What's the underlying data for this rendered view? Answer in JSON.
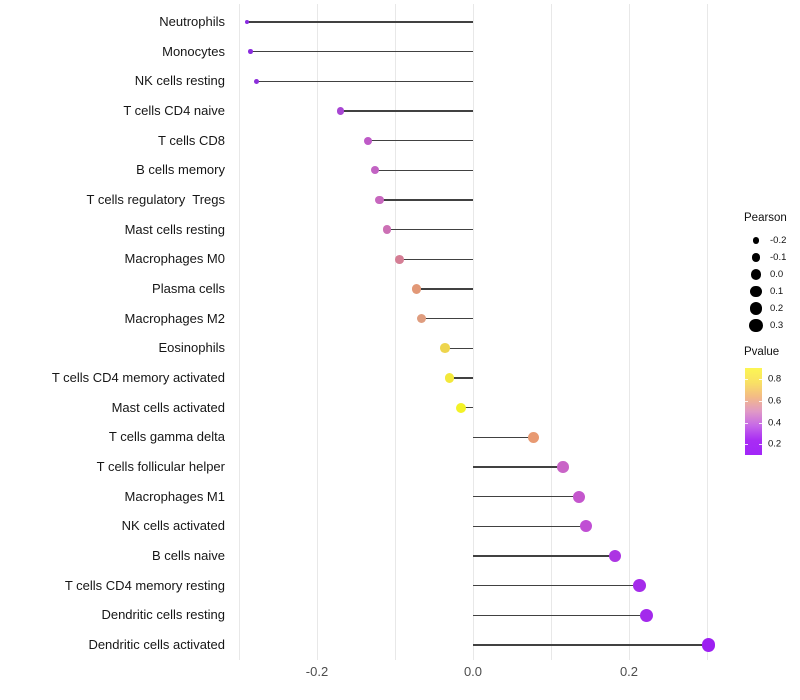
{
  "chart_data": {
    "type": "lollipop",
    "orientation": "horizontal",
    "title": "",
    "xlabel": "",
    "ylabel": "",
    "grid": "vertical-only",
    "xlim": [
      -0.31,
      0.31
    ],
    "grid_x_values": [
      -0.3,
      -0.2,
      -0.1,
      0.0,
      0.1,
      0.2,
      0.3
    ],
    "x_ticks": [
      "-0.2",
      "0.0",
      "0.2"
    ],
    "x_tick_values": [
      -0.2,
      0.0,
      0.2
    ],
    "baseline_value": 0.0,
    "points": [
      {
        "label": "Neutrophils",
        "pearson": -0.29,
        "color": "#8a2be0"
      },
      {
        "label": "Monocytes",
        "pearson": -0.285,
        "color": "#8a2cde"
      },
      {
        "label": "NK cells resting",
        "pearson": -0.278,
        "color": "#8d30db"
      },
      {
        "label": "T cells CD4 naive",
        "pearson": -0.17,
        "color": "#a846d3"
      },
      {
        "label": "T cells CD8",
        "pearson": -0.135,
        "color": "#be5ac7"
      },
      {
        "label": "B cells memory",
        "pearson": -0.126,
        "color": "#c263c3"
      },
      {
        "label": "T cells regulatory  Tregs",
        "pearson": -0.12,
        "color": "#c767be"
      },
      {
        "label": "Mast cells resting",
        "pearson": -0.11,
        "color": "#cc70b5"
      },
      {
        "label": "Macrophages M0",
        "pearson": -0.094,
        "color": "#d57e95"
      },
      {
        "label": "Plasma cells",
        "pearson": -0.072,
        "color": "#e29877"
      },
      {
        "label": "Macrophages M2",
        "pearson": -0.066,
        "color": "#df9d7f"
      },
      {
        "label": "Eosinophils",
        "pearson": -0.036,
        "color": "#eed54d"
      },
      {
        "label": "T cells CD4 memory activated",
        "pearson": -0.03,
        "color": "#f3e83b"
      },
      {
        "label": "Mast cells activated",
        "pearson": -0.016,
        "color": "#f3f227"
      },
      {
        "label": "T cells gamma delta",
        "pearson": 0.078,
        "color": "#e89a72"
      },
      {
        "label": "T cells follicular helper",
        "pearson": 0.115,
        "color": "#c964c7"
      },
      {
        "label": "Macrophages M1",
        "pearson": 0.136,
        "color": "#c456cd"
      },
      {
        "label": "NK cells activated",
        "pearson": 0.145,
        "color": "#c04ed4"
      },
      {
        "label": "B cells naive",
        "pearson": 0.182,
        "color": "#ac35e3"
      },
      {
        "label": "T cells CD4 memory resting",
        "pearson": 0.214,
        "color": "#a52cea"
      },
      {
        "label": "Dendritic cells resting",
        "pearson": 0.223,
        "color": "#a329ec"
      },
      {
        "label": "Dendritic cells activated",
        "pearson": 0.302,
        "color": "#9d20f1"
      }
    ],
    "legends": {
      "size": {
        "title": "Pearson",
        "items": [
          "-0.2",
          "-0.1",
          "0.0",
          "0.1",
          "0.2",
          "0.3"
        ],
        "values": [
          -0.2,
          -0.1,
          0.0,
          0.1,
          0.2,
          0.3
        ],
        "dot_color": "#000000"
      },
      "color": {
        "title": "Pvalue",
        "ticks": [
          "0.8",
          "0.6",
          "0.4",
          "0.2"
        ],
        "gradient_top_to_bottom": [
          "#fcf653",
          "#f9e164",
          "#f3ba86",
          "#e099c6",
          "#c567e8",
          "#a82cf4",
          "#a226f8"
        ]
      }
    }
  }
}
